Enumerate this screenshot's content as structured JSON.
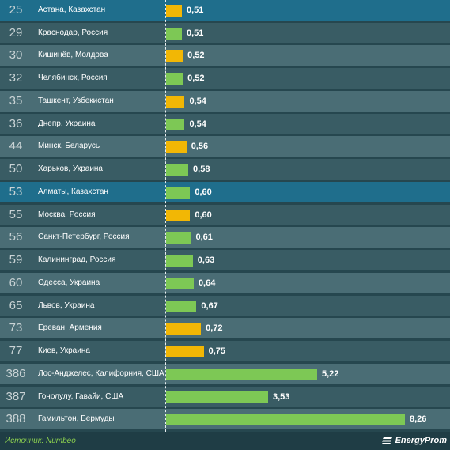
{
  "chart_data": {
    "type": "bar",
    "orientation": "horizontal",
    "rows": [
      {
        "rank": "25",
        "city": "Астана, Казахстан",
        "value": 0.51,
        "label": "0,51",
        "bar_color": "#f2b705",
        "highlight": true
      },
      {
        "rank": "29",
        "city": "Краснодар, Россия",
        "value": 0.51,
        "label": "0,51",
        "bar_color": "#7dc855",
        "highlight": false
      },
      {
        "rank": "30",
        "city": "Кишинёв, Молдова",
        "value": 0.52,
        "label": "0,52",
        "bar_color": "#f2b705",
        "highlight": false
      },
      {
        "rank": "32",
        "city": "Челябинск, Россия",
        "value": 0.52,
        "label": "0,52",
        "bar_color": "#7dc855",
        "highlight": false
      },
      {
        "rank": "35",
        "city": "Ташкент, Узбекистан",
        "value": 0.54,
        "label": "0,54",
        "bar_color": "#f2b705",
        "highlight": false
      },
      {
        "rank": "36",
        "city": "Днепр, Украина",
        "value": 0.54,
        "label": "0,54",
        "bar_color": "#7dc855",
        "highlight": false
      },
      {
        "rank": "44",
        "city": "Минск, Беларусь",
        "value": 0.56,
        "label": "0,56",
        "bar_color": "#f2b705",
        "highlight": false
      },
      {
        "rank": "50",
        "city": "Харьков, Украина",
        "value": 0.58,
        "label": "0,58",
        "bar_color": "#7dc855",
        "highlight": false
      },
      {
        "rank": "53",
        "city": "Алматы, Казахстан",
        "value": 0.6,
        "label": "0,60",
        "bar_color": "#7dc855",
        "highlight": true
      },
      {
        "rank": "55",
        "city": "Москва, Россия",
        "value": 0.6,
        "label": "0,60",
        "bar_color": "#f2b705",
        "highlight": false
      },
      {
        "rank": "56",
        "city": "Санкт-Петербург, Россия",
        "value": 0.61,
        "label": "0,61",
        "bar_color": "#7dc855",
        "highlight": false
      },
      {
        "rank": "59",
        "city": "Калининград, Россия",
        "value": 0.63,
        "label": "0,63",
        "bar_color": "#7dc855",
        "highlight": false
      },
      {
        "rank": "60",
        "city": "Одесса, Украина",
        "value": 0.64,
        "label": "0,64",
        "bar_color": "#7dc855",
        "highlight": false
      },
      {
        "rank": "65",
        "city": "Львов, Украина",
        "value": 0.67,
        "label": "0,67",
        "bar_color": "#7dc855",
        "highlight": false
      },
      {
        "rank": "73",
        "city": "Ереван, Армения",
        "value": 0.72,
        "label": "0,72",
        "bar_color": "#f2b705",
        "highlight": false
      },
      {
        "rank": "77",
        "city": "Киев, Украина",
        "value": 0.75,
        "label": "0,75",
        "bar_color": "#f2b705",
        "highlight": false
      },
      {
        "rank": "386",
        "city": "Лос-Анджелес, Калифорния, США",
        "value": 5.22,
        "label": "5,22",
        "bar_color": "#7dc855",
        "highlight": false
      },
      {
        "rank": "387",
        "city": "Гонолулу, Гавайи, США",
        "value": 3.53,
        "label": "3,53",
        "bar_color": "#7dc855",
        "highlight": false
      },
      {
        "rank": "388",
        "city": "Гамильтон, Бермуды",
        "value": 8.26,
        "label": "8,26",
        "bar_color": "#7dc855",
        "highlight": false
      }
    ],
    "note": "bar lengths are not proportional to values in the original; values are taken from data labels"
  },
  "colors": {
    "row_dark": "#395c64",
    "row_light": "#4a6d75",
    "row_highlight": "#1f6e8c",
    "bar_yellow": "#f2b705",
    "bar_green": "#7dc855"
  },
  "footer": {
    "source": "Источник: Numbeo",
    "logo": "EnergyProm"
  }
}
